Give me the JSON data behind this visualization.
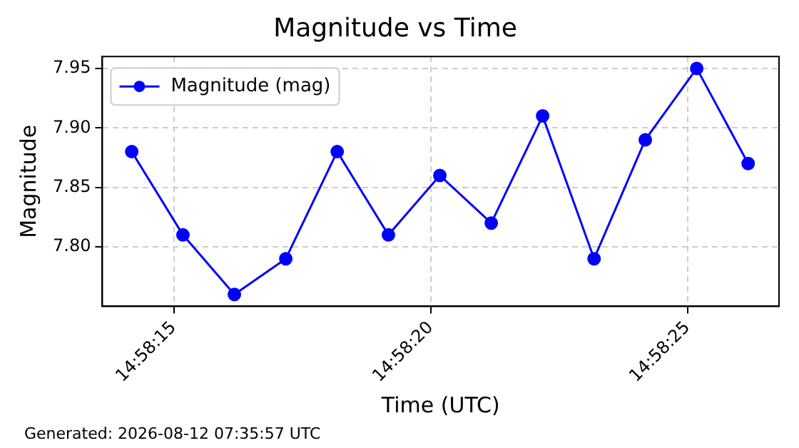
{
  "chart_data": {
    "type": "line",
    "title": "Magnitude vs Time",
    "xlabel": "Time (UTC)",
    "ylabel": "Magnitude",
    "x": [
      14.970606,
      14.970883,
      14.971161,
      14.971439,
      14.971717,
      14.971994,
      14.972272,
      14.97255,
      14.972828,
      14.973106,
      14.973383,
      14.973661,
      14.973939
    ],
    "series": [
      {
        "name": "Magnitude (mag)",
        "color": "#0000ff",
        "values": [
          7.88,
          7.81,
          7.76,
          7.79,
          7.88,
          7.81,
          7.86,
          7.82,
          7.91,
          7.79,
          7.89,
          7.95,
          7.87
        ]
      }
    ],
    "xlim": [
      14.970447,
      14.974106
    ],
    "xticks": [
      {
        "value": 14.970833,
        "label": "14:58:15"
      },
      {
        "value": 14.972222,
        "label": "14:58:20"
      },
      {
        "value": 14.973611,
        "label": "14:58:25"
      }
    ],
    "ylim": [
      7.75,
      7.96
    ],
    "yticks": [
      {
        "value": 7.8,
        "label": "7.80"
      },
      7.85,
      {
        "value": 7.9,
        "label": "7.90"
      },
      7.95
    ],
    "grid": true,
    "legend": "top left",
    "marker": "circle",
    "line_style": "solid",
    "annotations": [
      "Generated: 2026-08-12 07:35:57 UTC"
    ]
  }
}
